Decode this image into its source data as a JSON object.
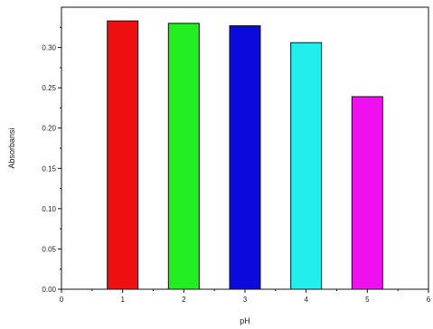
{
  "chart_data": {
    "type": "bar",
    "categories": [
      "1",
      "2",
      "3",
      "4",
      "5"
    ],
    "values": [
      0.333,
      0.33,
      0.327,
      0.306,
      0.239
    ],
    "colors": [
      "#ee1010",
      "#22ee22",
      "#0a0add",
      "#22eeee",
      "#ee10ee"
    ],
    "xlabel": "pH",
    "ylabel": "Absorbansi",
    "xlim": [
      0,
      6
    ],
    "ylim": [
      0,
      0.35
    ],
    "x_ticks": [
      "0",
      "1",
      "2",
      "3",
      "4",
      "5",
      "6"
    ],
    "y_ticks": [
      "0.00",
      "0.05",
      "0.10",
      "0.15",
      "0.20",
      "0.25",
      "0.30"
    ],
    "grid": false,
    "legend": "none"
  }
}
